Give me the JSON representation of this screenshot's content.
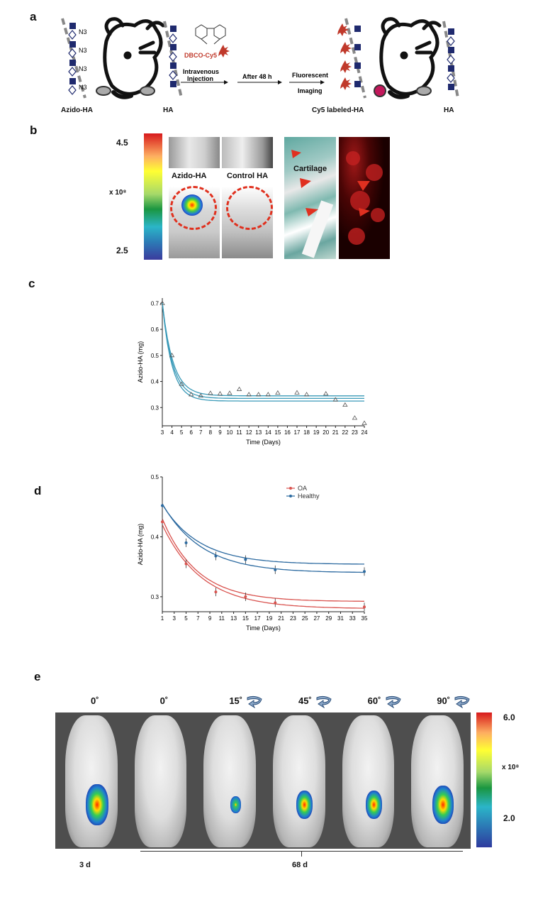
{
  "panels": {
    "a": {
      "letter": "a",
      "left_label": "Azido-HA",
      "ha_label_1": "HA",
      "n3_labels": [
        "N3",
        "N3",
        "N3",
        "N3"
      ],
      "reagent": "DBCO-Cy5",
      "step1": "Intravenous Injection",
      "step2": "After 48 h",
      "step3": "Fluorescent Imaging",
      "right_label": "Cy5 labeled-HA",
      "ha_label_2": "HA"
    },
    "b": {
      "letter": "b",
      "scale_max": "4.5",
      "scale_min": "2.5",
      "scale_unit": "x 10⁸",
      "label_azido": "Azido-HA",
      "label_control": "Control HA",
      "label_cartilage": "Cartilage"
    },
    "c": {
      "letter": "c"
    },
    "d": {
      "letter": "d"
    },
    "e": {
      "letter": "e",
      "angles": [
        "0˚",
        "0˚",
        "15˚",
        "45˚",
        "60˚",
        "90˚"
      ],
      "scale_max": "6.0",
      "scale_min": "2.0",
      "scale_unit": "x 10⁸",
      "time_left": "3 d",
      "time_right": "68 d"
    }
  },
  "chart_data": [
    {
      "type": "scatter",
      "panel": "c",
      "xlabel": "Time (Days)",
      "ylabel": "Azido-HA (mg)",
      "xlim": [
        3,
        24
      ],
      "ylim": [
        0.23,
        0.72
      ],
      "xticks": [
        3,
        4,
        5,
        6,
        7,
        8,
        9,
        10,
        11,
        12,
        13,
        14,
        15,
        16,
        17,
        18,
        19,
        20,
        21,
        22,
        23,
        24
      ],
      "yticks": [
        0.3,
        0.4,
        0.5,
        0.6,
        0.7
      ],
      "points": [
        [
          3,
          0.7
        ],
        [
          4,
          0.5
        ],
        [
          5,
          0.39
        ],
        [
          6,
          0.35
        ],
        [
          7,
          0.345
        ],
        [
          8,
          0.355
        ],
        [
          9,
          0.353
        ],
        [
          10,
          0.355
        ],
        [
          11,
          0.37
        ],
        [
          12,
          0.35
        ],
        [
          13,
          0.35
        ],
        [
          14,
          0.35
        ],
        [
          15,
          0.356
        ],
        [
          17,
          0.357
        ],
        [
          18,
          0.35
        ],
        [
          20,
          0.353
        ],
        [
          21,
          0.33
        ],
        [
          22,
          0.31
        ],
        [
          23,
          0.26
        ],
        [
          24,
          0.24
        ]
      ],
      "fit_curves": [
        {
          "plateau": 0.345,
          "amplitude": 0.355,
          "k": 0.9
        },
        {
          "plateau": 0.335,
          "amplitude": 0.365,
          "k": 0.95
        },
        {
          "plateau": 0.325,
          "amplitude": 0.375,
          "k": 1.0
        }
      ],
      "color": "#3a9ab8"
    },
    {
      "type": "line",
      "panel": "d",
      "xlabel": "Time (Days)",
      "ylabel": "Azido-HA (mg)",
      "xlim": [
        1,
        35
      ],
      "ylim": [
        0.275,
        0.5
      ],
      "xticks": [
        1,
        3,
        5,
        7,
        9,
        11,
        13,
        15,
        17,
        19,
        21,
        23,
        25,
        27,
        29,
        31,
        33,
        35
      ],
      "yticks": [
        0.3,
        0.4,
        0.5
      ],
      "legend_position": "top-right",
      "series": [
        {
          "name": "OA",
          "color": "#d9534f",
          "x": [
            1,
            5,
            10,
            15,
            20,
            35
          ],
          "y": [
            0.425,
            0.355,
            0.308,
            0.3,
            0.29,
            0.283
          ],
          "fit_curves": [
            {
              "plateau": 0.292,
              "amplitude": 0.138,
              "k": 0.17
            },
            {
              "plateau": 0.28,
              "amplitude": 0.14,
              "k": 0.15
            }
          ]
        },
        {
          "name": "Healthy",
          "color": "#2c6aa0",
          "x": [
            1,
            5,
            10,
            15,
            20,
            35
          ],
          "y": [
            0.452,
            0.39,
            0.368,
            0.362,
            0.345,
            0.342
          ],
          "fit_curves": [
            {
              "plateau": 0.354,
              "amplitude": 0.1,
              "k": 0.16
            },
            {
              "plateau": 0.34,
              "amplitude": 0.115,
              "k": 0.15
            }
          ]
        }
      ]
    }
  ]
}
